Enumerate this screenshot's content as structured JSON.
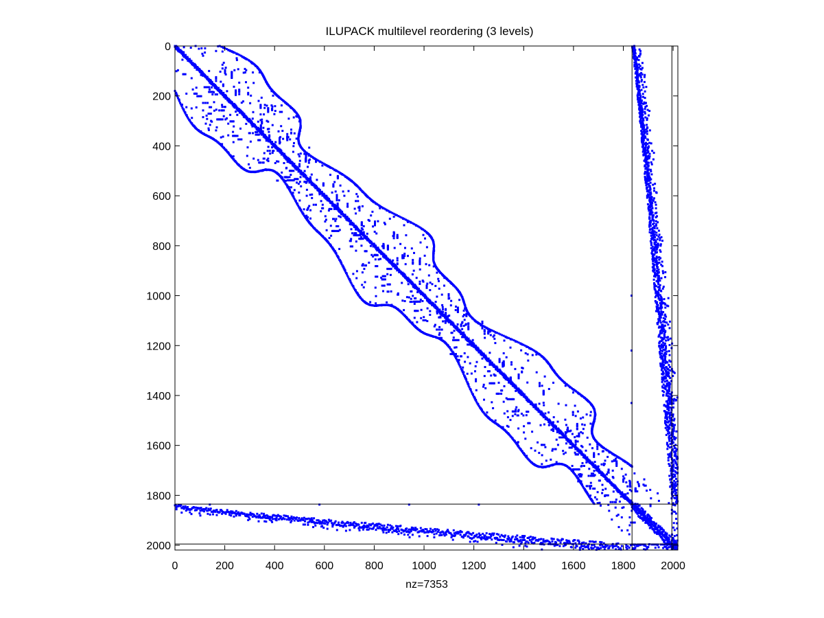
{
  "chart_data": {
    "type": "scatter",
    "subtype": "sparsity-pattern",
    "title": "ILUPACK multilevel reordering (3 levels)",
    "xlabel": "nz=7353",
    "ylabel": "",
    "matrix_size": 2018,
    "nnz": 7353,
    "xlim": [
      0,
      2019
    ],
    "ylim": [
      2019,
      0
    ],
    "y_axis_direction": "reversed",
    "xticks": [
      0,
      200,
      400,
      600,
      800,
      1000,
      1200,
      1400,
      1600,
      1800,
      2000
    ],
    "yticks": [
      0,
      200,
      400,
      600,
      800,
      1000,
      1200,
      1400,
      1600,
      1800,
      2000
    ],
    "xtick_labels": [
      "0",
      "200",
      "400",
      "600",
      "800",
      "1000",
      "1200",
      "1400",
      "1600",
      "1800",
      "2000"
    ],
    "ytick_labels": [
      "0",
      "200",
      "400",
      "600",
      "800",
      "1000",
      "1200",
      "1400",
      "1600",
      "1800",
      "2000"
    ],
    "level_separators": [
      1835,
      1995
    ],
    "marker_color": "#0000ff",
    "marker": "dot",
    "grid": false,
    "legend": "none",
    "blocks": [
      {
        "name": "level-1-diagonal",
        "rows": [
          0,
          1835
        ],
        "cols": [
          0,
          1835
        ],
        "pattern": "main diagonal with envelope band; outer band boundaries along row = col + 25..245"
      },
      {
        "name": "level-1-coupling-right",
        "rows": [
          0,
          1835
        ],
        "cols": [
          1835,
          2019
        ],
        "pattern": "narrow curve from col 1840 at row 0 to col 2010 at row 1800"
      },
      {
        "name": "level-1-coupling-bottom",
        "rows": [
          1835,
          2019
        ],
        "cols": [
          0,
          1835
        ],
        "pattern": "narrow curve from row 1845 at col 0 to row 2010 at col 1800"
      },
      {
        "name": "level-2-diagonal",
        "rows": [
          1835,
          1995
        ],
        "cols": [
          1835,
          1995
        ],
        "pattern": "diagonal with small band"
      },
      {
        "name": "level-3-diagonal",
        "rows": [
          1995,
          2019
        ],
        "cols": [
          1995,
          2019
        ],
        "pattern": "small dense block"
      }
    ]
  }
}
